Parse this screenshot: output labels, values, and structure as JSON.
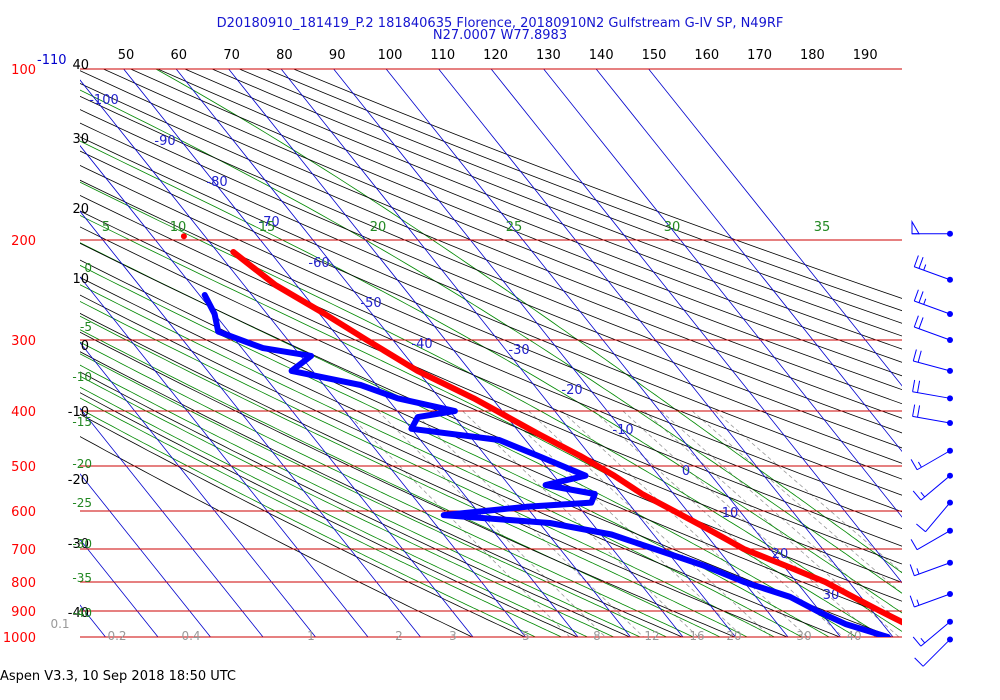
{
  "header": {
    "line1": "D20180910_181419_P.2 181840635 Florence, 20180910N2 Gulfstream G-IV SP, N49RF",
    "line2": "N27.0007 W77.8983"
  },
  "footer": "Aspen V3.3, 10 Sep 2018  18:50 UTC",
  "colors": {
    "temperature": "#ff0000",
    "dewpoint": "#0000ff",
    "isobar": "#cc0000",
    "isotherm": "#0000cc",
    "dry_adiabat": "#000000",
    "moist_adiabat": "#008800",
    "mixing_ratio": "#999999",
    "wind_barb": "#0000ff"
  },
  "chart_data": {
    "type": "skew-t log-p",
    "pressure_axis_label": "100",
    "pressure_axis_label_suffix": "-110",
    "pressure_levels": [
      100,
      200,
      300,
      400,
      500,
      600,
      700,
      800,
      900,
      1000
    ],
    "left_temperature_labels": [
      "40",
      "30",
      "20",
      "10",
      "0",
      "-10",
      "-20",
      "-30",
      "-40"
    ],
    "top_labels": [
      "50",
      "60",
      "70",
      "80",
      "90",
      "100",
      "110",
      "120",
      "130",
      "140",
      "150",
      "160",
      "170",
      "180",
      "190"
    ],
    "isotherm_labels": [
      "-100",
      "-90",
      "-80",
      "-70",
      "-60",
      "-50",
      "-40",
      "-30",
      "-20",
      "-10",
      "0",
      "10",
      "20",
      "30"
    ],
    "moist_adiabat_top_labels": [
      "5",
      "10",
      "15",
      "20",
      "25",
      "30",
      "35"
    ],
    "moist_adiabat_left_labels": [
      "0",
      "-5",
      "-10",
      "-15",
      "-20",
      "-25",
      "-30",
      "-35",
      "-40"
    ],
    "mixing_ratio_labels": [
      "0.1",
      "0.2",
      "0.4",
      "1",
      "2",
      "3",
      "5",
      "8",
      "12",
      "16",
      "20",
      "30",
      "40"
    ],
    "temperature_profile": [
      {
        "p": 210,
        "t": -47
      },
      {
        "p": 240,
        "t": -44
      },
      {
        "p": 270,
        "t": -39
      },
      {
        "p": 300,
        "t": -35
      },
      {
        "p": 340,
        "t": -30
      },
      {
        "p": 380,
        "t": -23.5
      },
      {
        "p": 400,
        "t": -21
      },
      {
        "p": 440,
        "t": -16.5
      },
      {
        "p": 480,
        "t": -12
      },
      {
        "p": 520,
        "t": -8.5
      },
      {
        "p": 560,
        "t": -6
      },
      {
        "p": 600,
        "t": -2.5
      },
      {
        "p": 650,
        "t": 1.5
      },
      {
        "p": 700,
        "t": 5
      },
      {
        "p": 750,
        "t": 10.5
      },
      {
        "p": 800,
        "t": 15.5
      },
      {
        "p": 850,
        "t": 18.5
      },
      {
        "p": 900,
        "t": 21.5
      },
      {
        "p": 950,
        "t": 24.5
      },
      {
        "p": 1000,
        "t": 27
      }
    ],
    "temperature_top_point": {
      "p": 197,
      "t": -54
    },
    "dewpoint_profile": [
      {
        "p": 250,
        "td": -59
      },
      {
        "p": 270,
        "td": -60
      },
      {
        "p": 290,
        "td": -62
      },
      {
        "p": 310,
        "td": -56
      },
      {
        "p": 320,
        "td": -48
      },
      {
        "p": 340,
        "td": -54
      },
      {
        "p": 360,
        "td": -43
      },
      {
        "p": 380,
        "td": -38
      },
      {
        "p": 400,
        "td": -29
      },
      {
        "p": 410,
        "td": -37
      },
      {
        "p": 430,
        "td": -40
      },
      {
        "p": 450,
        "td": -25
      },
      {
        "p": 480,
        "td": -20
      },
      {
        "p": 520,
        "td": -14
      },
      {
        "p": 540,
        "td": -23
      },
      {
        "p": 560,
        "td": -15
      },
      {
        "p": 580,
        "td": -17
      },
      {
        "p": 590,
        "td": -30
      },
      {
        "p": 610,
        "td": -47
      },
      {
        "p": 630,
        "td": -28
      },
      {
        "p": 660,
        "td": -18
      },
      {
        "p": 700,
        "td": -12
      },
      {
        "p": 750,
        "td": -5
      },
      {
        "p": 800,
        "td": 0
      },
      {
        "p": 850,
        "td": 6.5
      },
      {
        "p": 900,
        "td": 9.5
      },
      {
        "p": 950,
        "td": 13
      },
      {
        "p": 1000,
        "td": 19
      }
    ],
    "wind_barb_levels": [
      195,
      235,
      270,
      300,
      340,
      380,
      420,
      470,
      520,
      580,
      650,
      740,
      840,
      940,
      1010
    ],
    "wind_barb_directions": [
      270,
      290,
      290,
      290,
      285,
      280,
      280,
      240,
      230,
      220,
      240,
      250,
      250,
      230,
      225
    ],
    "wind_barb_speeds": [
      50,
      25,
      25,
      20,
      20,
      20,
      20,
      15,
      15,
      10,
      10,
      15,
      15,
      15,
      10
    ]
  }
}
